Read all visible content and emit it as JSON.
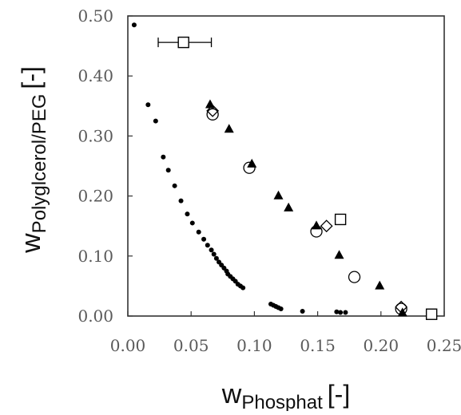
{
  "chart_data": {
    "type": "scatter",
    "xlabel_main": "w",
    "xlabel_sub": "Phosphat",
    "xlabel_unit": "[-]",
    "ylabel_main": "w",
    "ylabel_sub": "Polyglcerol/PEG",
    "ylabel_unit": "[-]",
    "xlim": [
      0.0,
      0.25
    ],
    "ylim": [
      0.0,
      0.5
    ],
    "x_ticks": [
      "0.00",
      "0.05",
      "0.10",
      "0.15",
      "0.20",
      "0.25"
    ],
    "y_ticks": [
      "0.00",
      "0.10",
      "0.20",
      "0.30",
      "0.40",
      "0.50"
    ],
    "grid": false,
    "legend": "none",
    "series": [
      {
        "marker": "small-dot",
        "color": "#000000",
        "points": [
          [
            0.005,
            0.485
          ],
          [
            0.016,
            0.352
          ],
          [
            0.022,
            0.325
          ],
          [
            0.028,
            0.265
          ],
          [
            0.032,
            0.243
          ],
          [
            0.037,
            0.217
          ],
          [
            0.042,
            0.192
          ],
          [
            0.047,
            0.17
          ],
          [
            0.051,
            0.155
          ],
          [
            0.056,
            0.14
          ],
          [
            0.06,
            0.128
          ],
          [
            0.063,
            0.118
          ],
          [
            0.066,
            0.11
          ],
          [
            0.068,
            0.103
          ],
          [
            0.07,
            0.096
          ],
          [
            0.072,
            0.09
          ],
          [
            0.074,
            0.085
          ],
          [
            0.076,
            0.08
          ],
          [
            0.078,
            0.075
          ],
          [
            0.079,
            0.07
          ],
          [
            0.081,
            0.066
          ],
          [
            0.083,
            0.062
          ],
          [
            0.085,
            0.058
          ],
          [
            0.087,
            0.053
          ],
          [
            0.089,
            0.05
          ],
          [
            0.091,
            0.047
          ],
          [
            0.113,
            0.02
          ],
          [
            0.115,
            0.018
          ],
          [
            0.117,
            0.016
          ],
          [
            0.119,
            0.014
          ],
          [
            0.121,
            0.012
          ],
          [
            0.138,
            0.008
          ],
          [
            0.165,
            0.007
          ],
          [
            0.168,
            0.006
          ],
          [
            0.172,
            0.006
          ]
        ]
      },
      {
        "marker": "filled-triangle",
        "color": "#000000",
        "points": [
          [
            0.065,
            0.352
          ],
          [
            0.08,
            0.311
          ],
          [
            0.098,
            0.253
          ],
          [
            0.119,
            0.2
          ],
          [
            0.127,
            0.18
          ],
          [
            0.149,
            0.15
          ],
          [
            0.167,
            0.101
          ],
          [
            0.199,
            0.05
          ],
          [
            0.217,
            0.005
          ]
        ]
      },
      {
        "marker": "open-circle",
        "color": "#000000",
        "points": [
          [
            0.067,
            0.336
          ],
          [
            0.096,
            0.247
          ],
          [
            0.149,
            0.141
          ],
          [
            0.179,
            0.065
          ],
          [
            0.216,
            0.012
          ]
        ]
      },
      {
        "marker": "open-diamond",
        "color": "#000000",
        "points": [
          [
            0.067,
            0.342
          ],
          [
            0.157,
            0.15
          ],
          [
            0.216,
            0.015
          ]
        ]
      },
      {
        "marker": "open-square",
        "color": "#000000",
        "points": [
          [
            0.044,
            0.456
          ],
          [
            0.168,
            0.161
          ],
          [
            0.24,
            0.003
          ]
        ],
        "x_error": [
          [
            0.024,
            0.066
          ],
          null,
          null
        ]
      }
    ]
  }
}
